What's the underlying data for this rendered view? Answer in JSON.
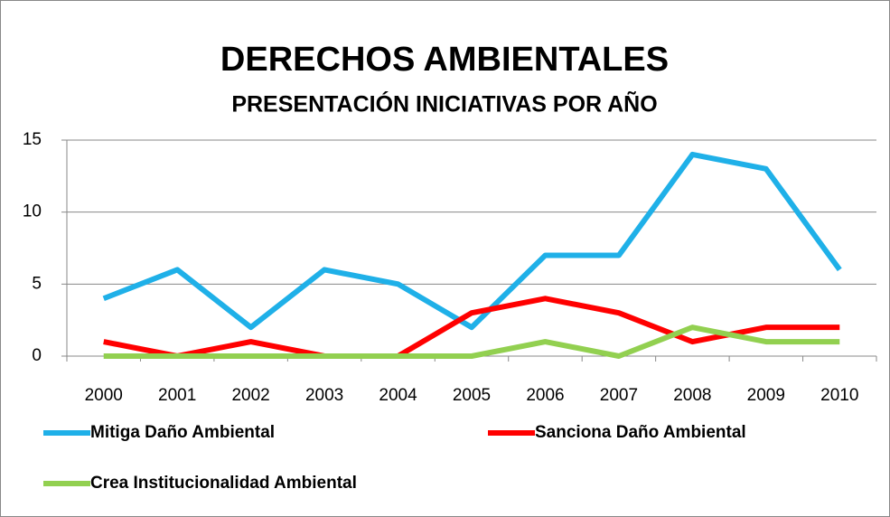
{
  "chart_data": {
    "type": "line",
    "title": "DERECHOS AMBIENTALES",
    "subtitle": "PRESENTACIÓN INICIATIVAS POR AÑO",
    "categories": [
      "2000",
      "2001",
      "2002",
      "2003",
      "2004",
      "2005",
      "2006",
      "2007",
      "2008",
      "2009",
      "2010"
    ],
    "series": [
      {
        "name": "Mitiga Daño Ambiental",
        "color": "#1fb0e8",
        "values": [
          4,
          6,
          2,
          6,
          5,
          2,
          7,
          7,
          14,
          13,
          6
        ]
      },
      {
        "name": "Sanciona Daño Ambiental",
        "color": "#ff0000",
        "values": [
          1,
          0,
          1,
          0,
          0,
          3,
          4,
          3,
          1,
          2,
          2
        ]
      },
      {
        "name": "Crea Institucionalidad Ambiental",
        "color": "#92d050",
        "values": [
          0,
          0,
          0,
          0,
          0,
          0,
          1,
          0,
          2,
          1,
          1
        ]
      }
    ],
    "ylim": [
      0,
      15
    ],
    "yticks": [
      0,
      5,
      10,
      15
    ],
    "grid": true,
    "legend": "bottom"
  }
}
